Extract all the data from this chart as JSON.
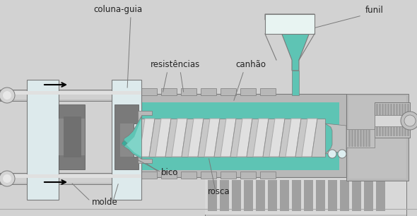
{
  "bg_color": "#d2d2d2",
  "gray_dark": "#7a7a7a",
  "gray_mid": "#a0a0a0",
  "gray_light": "#c0c0c0",
  "gray_lighter": "#d8d8d8",
  "gray_body": "#b8b8b8",
  "teal": "#5ec4b4",
  "teal_light": "#80d4c8",
  "teal_dark": "#3aaa9a",
  "white_light": "#ddeef0",
  "white_platen": "#ddeaec",
  "white": "#eef6f6",
  "white_top": "#e8f4f2",
  "screw_silver": "#c8c8c8",
  "lc": "#222222",
  "fs": 8.5,
  "labels": {
    "coluna_guia": "coluna-guia",
    "molde": "molde",
    "resistencias": "resistências",
    "canhao": "canhão",
    "bico": "bico",
    "rosca": "rosca",
    "funil": "funil"
  }
}
